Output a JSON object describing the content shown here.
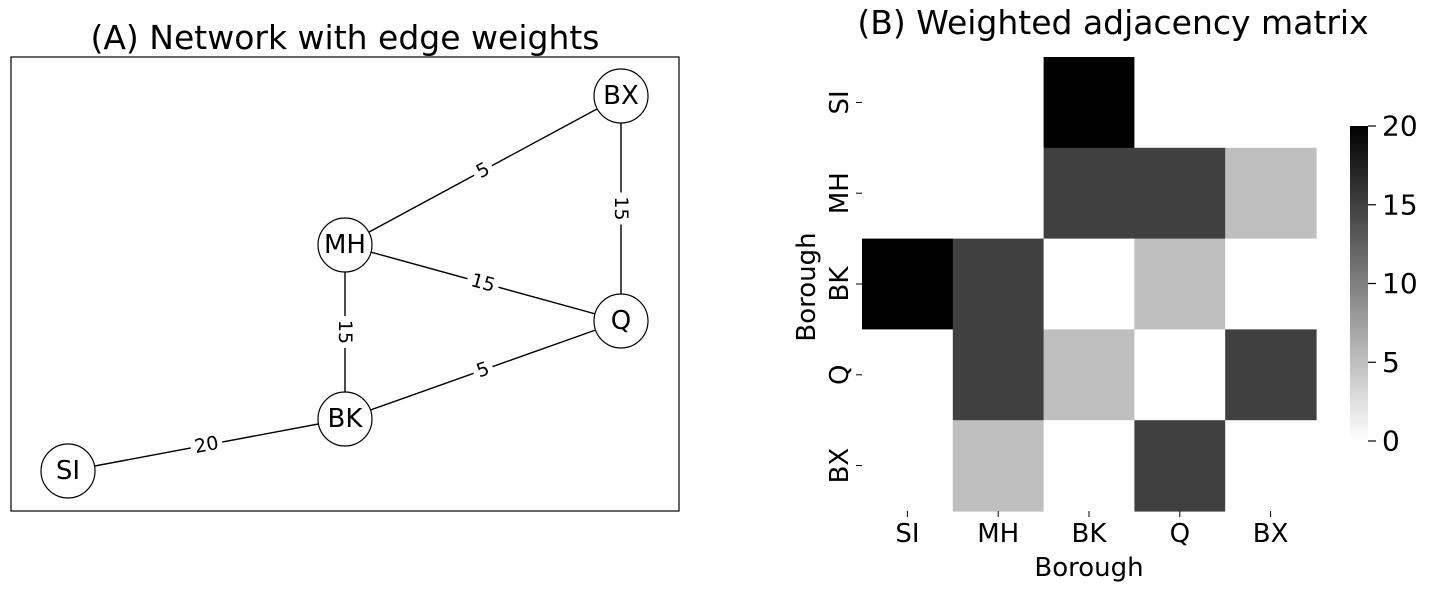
{
  "chart_data": [
    {
      "type": "network",
      "title": "(A) Network with edge weights",
      "nodes": [
        "BX",
        "MH",
        "Q",
        "BK",
        "SI"
      ],
      "edges": [
        {
          "source": "MH",
          "target": "BX",
          "weight": 5
        },
        {
          "source": "BX",
          "target": "Q",
          "weight": 15
        },
        {
          "source": "MH",
          "target": "Q",
          "weight": 15
        },
        {
          "source": "MH",
          "target": "BK",
          "weight": 15
        },
        {
          "source": "BK",
          "target": "Q",
          "weight": 5
        },
        {
          "source": "SI",
          "target": "BK",
          "weight": 20
        }
      ]
    },
    {
      "type": "heatmap",
      "title": "(B) Weighted adjacency matrix",
      "xlabel": "Borough",
      "ylabel": "Borough",
      "x_categories": [
        "SI",
        "MH",
        "BK",
        "Q",
        "BX"
      ],
      "y_categories": [
        "SI",
        "MH",
        "BK",
        "Q",
        "BX"
      ],
      "values": [
        [
          0,
          0,
          20,
          0,
          0
        ],
        [
          0,
          0,
          15,
          15,
          5
        ],
        [
          20,
          15,
          0,
          5,
          0
        ],
        [
          0,
          15,
          5,
          0,
          15
        ],
        [
          0,
          5,
          0,
          15,
          0
        ]
      ],
      "colorbar": {
        "min": 0,
        "max": 20,
        "ticks": [
          0,
          5,
          10,
          15,
          20
        ]
      },
      "colormap": {
        "low": "#ffffff",
        "high": "#000000"
      }
    }
  ]
}
